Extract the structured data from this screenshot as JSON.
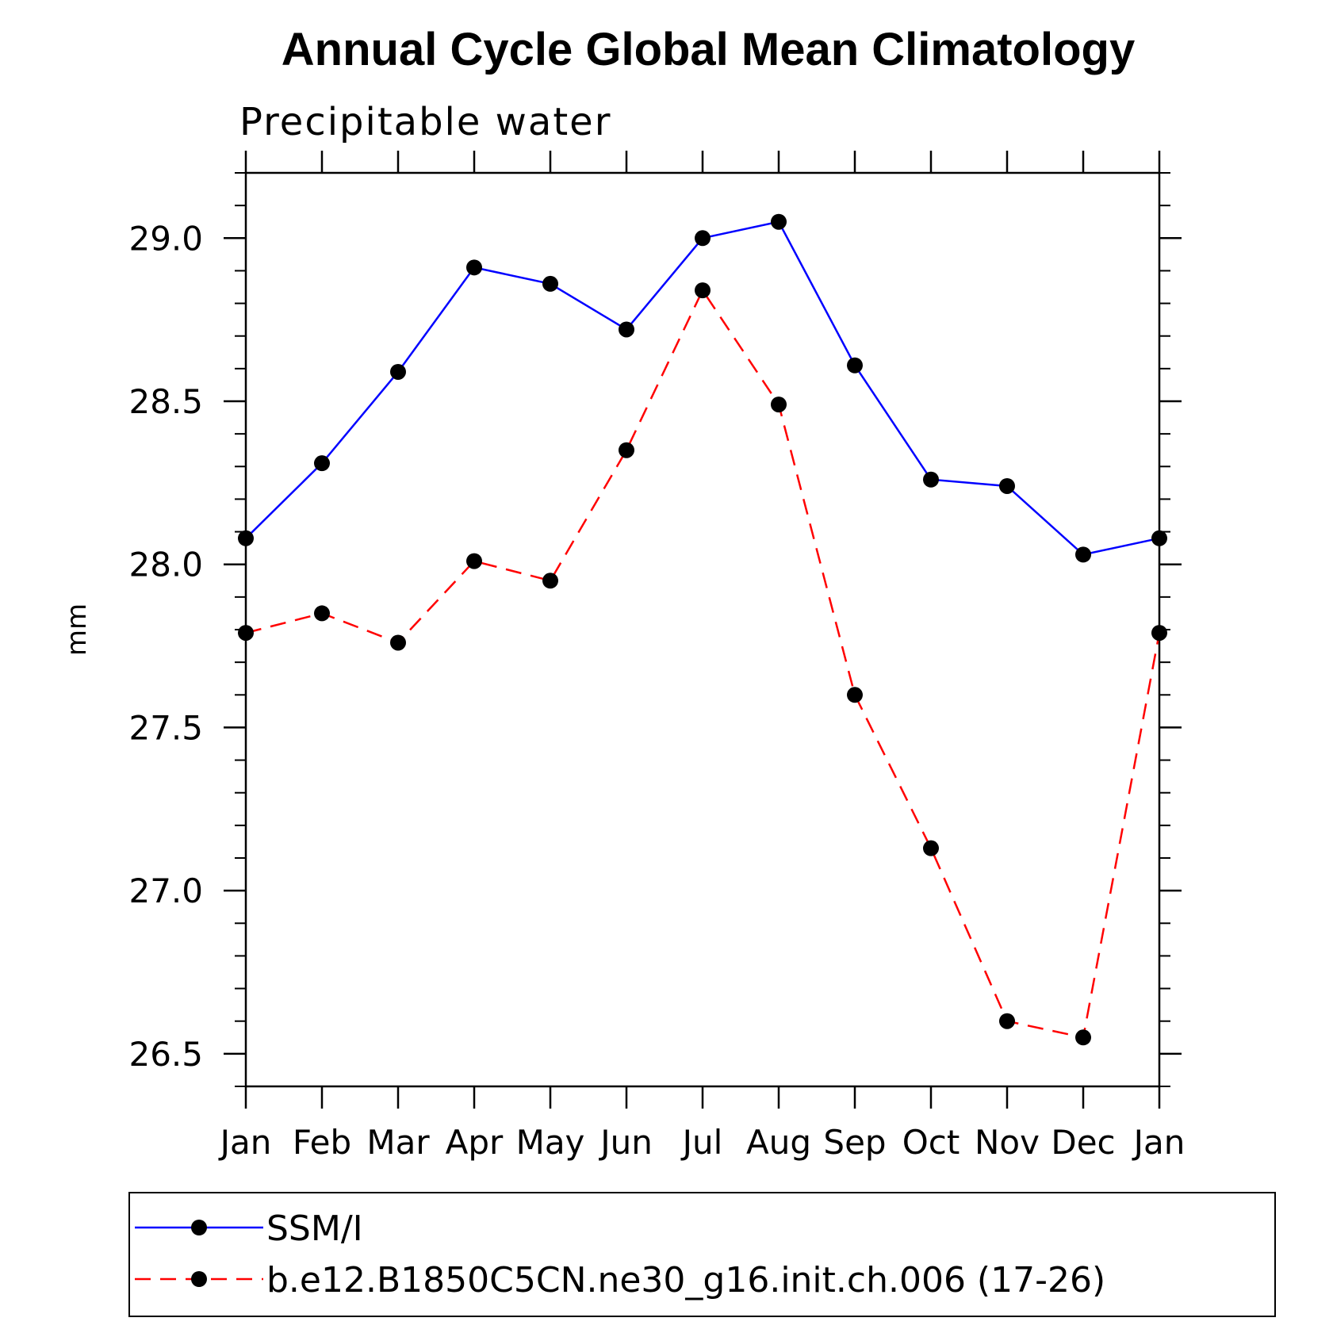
{
  "chart_data": {
    "type": "line",
    "title": "Annual Cycle Global Mean Climatology",
    "subtitle": "Precipitable water",
    "ylabel": "mm",
    "xlabel": "",
    "categories": [
      "Jan",
      "Feb",
      "Mar",
      "Apr",
      "May",
      "Jun",
      "Jul",
      "Aug",
      "Sep",
      "Oct",
      "Nov",
      "Dec",
      "Jan"
    ],
    "ylim": [
      26.4,
      29.2
    ],
    "yticks": [
      26.5,
      27.0,
      27.5,
      28.0,
      28.5,
      29.0
    ],
    "ytick_labels": [
      "26.5",
      "27.0",
      "27.5",
      "28.0",
      "28.5",
      "29.0"
    ],
    "series": [
      {
        "name": "SSM/I",
        "color": "#0000ff",
        "dash": "solid",
        "values": [
          28.08,
          28.31,
          28.59,
          28.91,
          28.86,
          28.72,
          29.0,
          29.05,
          28.61,
          28.26,
          28.24,
          28.03,
          28.08
        ]
      },
      {
        "name": "b.e12.B1850C5CN.ne30_g16.init.ch.006 (17-26)",
        "color": "#ff0000",
        "dash": "dashed",
        "values": [
          27.79,
          27.85,
          27.76,
          28.01,
          27.95,
          28.35,
          28.84,
          28.49,
          27.6,
          27.13,
          26.6,
          26.55,
          27.79
        ]
      }
    ],
    "legend_position": "bottom"
  }
}
